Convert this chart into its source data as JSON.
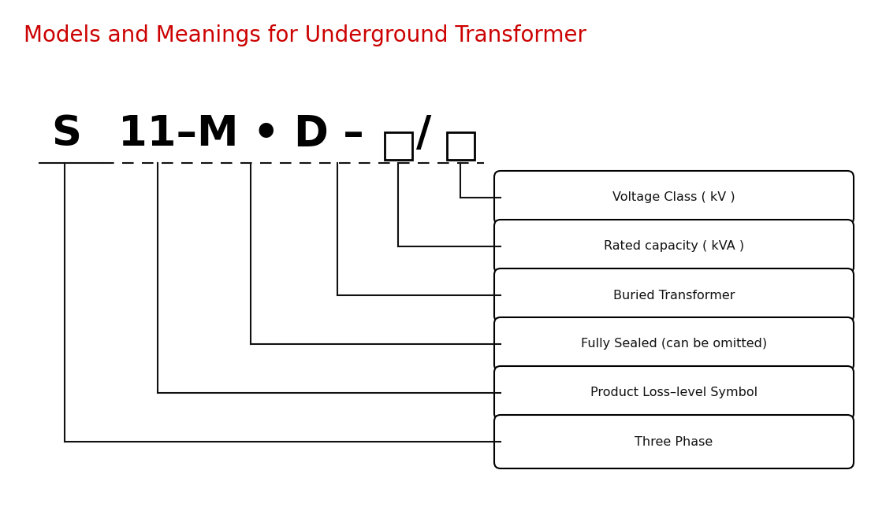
{
  "title": "Models and Meanings for Underground Transformer",
  "title_color": "#cc0000",
  "title_fontsize": 20,
  "background_color": "#ffffff",
  "labels": [
    "Voltage Class ( kV )",
    "Rated capacity ( kVA )",
    "Buried Transformer",
    "Fully Sealed (can be omitted)",
    "Product Loss–level Symbol",
    "Three Phase"
  ],
  "label_fontsize": 11.5,
  "line_color": "#111111",
  "text_color": "#111111",
  "formula_parts": [
    "S",
    "11–M • D –",
    "/"
  ],
  "formula_fontsize": 38
}
